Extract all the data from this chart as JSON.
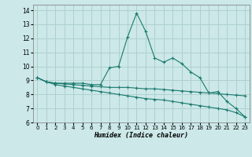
{
  "title": "",
  "xlabel": "Humidex (Indice chaleur)",
  "background_color": "#cce8e8",
  "grid_color": "#afd0d0",
  "line_color": "#1a7a6e",
  "xlim": [
    -0.5,
    23.5
  ],
  "ylim": [
    6,
    14.4
  ],
  "yticks": [
    6,
    7,
    8,
    9,
    10,
    11,
    12,
    13,
    14
  ],
  "xticks": [
    0,
    1,
    2,
    3,
    4,
    5,
    6,
    7,
    8,
    9,
    10,
    11,
    12,
    13,
    14,
    15,
    16,
    17,
    18,
    19,
    20,
    21,
    22,
    23
  ],
  "line1_x": [
    0,
    1,
    2,
    3,
    4,
    5,
    6,
    7,
    8,
    9,
    10,
    11,
    12,
    13,
    14,
    15,
    16,
    17,
    18,
    19,
    20,
    21,
    22,
    23
  ],
  "line1_y": [
    9.2,
    8.9,
    8.8,
    8.8,
    8.8,
    8.8,
    8.7,
    8.7,
    9.9,
    10.0,
    12.1,
    13.8,
    12.5,
    10.6,
    10.3,
    10.6,
    10.2,
    9.6,
    9.2,
    8.1,
    8.2,
    7.5,
    7.0,
    6.4
  ],
  "line2_x": [
    0,
    1,
    2,
    3,
    4,
    5,
    6,
    7,
    8,
    9,
    10,
    11,
    12,
    13,
    14,
    15,
    16,
    17,
    18,
    19,
    20,
    21,
    22,
    23
  ],
  "line2_y": [
    9.2,
    8.9,
    8.8,
    8.75,
    8.7,
    8.65,
    8.6,
    8.55,
    8.5,
    8.5,
    8.5,
    8.45,
    8.4,
    8.4,
    8.35,
    8.3,
    8.25,
    8.2,
    8.15,
    8.1,
    8.05,
    8.0,
    7.95,
    7.9
  ],
  "line3_x": [
    0,
    1,
    2,
    3,
    4,
    5,
    6,
    7,
    8,
    9,
    10,
    11,
    12,
    13,
    14,
    15,
    16,
    17,
    18,
    19,
    20,
    21,
    22,
    23
  ],
  "line3_y": [
    9.2,
    8.9,
    8.7,
    8.6,
    8.5,
    8.4,
    8.3,
    8.2,
    8.1,
    8.0,
    7.9,
    7.8,
    7.7,
    7.65,
    7.6,
    7.5,
    7.4,
    7.3,
    7.2,
    7.1,
    7.0,
    6.9,
    6.7,
    6.4
  ]
}
